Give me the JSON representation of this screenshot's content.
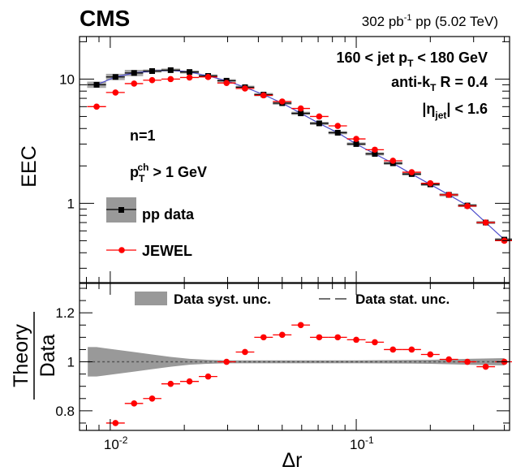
{
  "header": {
    "experiment": "CMS",
    "lumi_value": "302 pb",
    "lumi_exp": "-1",
    "lumi_rest": " pp (5.02 TeV)"
  },
  "labels": {
    "jet_pt": {
      "pre": "160 < jet p",
      "sub": "T",
      "post": " < 180 GeV"
    },
    "algo": {
      "pre": "anti-k",
      "sub": "T",
      "post": " R = 0.4"
    },
    "eta": {
      "pre": "|η",
      "sub": "jet",
      "post": "| < 1.6"
    },
    "n": "n=1",
    "track": {
      "pre": "p",
      "sub": "T",
      "sup": "ch",
      "post": " > 1 GeV"
    }
  },
  "legend_top": [
    "pp data",
    "JEWEL"
  ],
  "legend_bottom": [
    "Data syst. unc.",
    "Data stat. unc."
  ],
  "colors": {
    "data": "#000000",
    "jewel": "#ff0000",
    "band": "#999999",
    "line": "#4d4dcc"
  },
  "chart_data": [
    {
      "type": "scatter",
      "ylabel": "EEC",
      "yscale": "log",
      "ylim": [
        0.23,
        22
      ],
      "xscale": "log",
      "xlim": [
        0.0075,
        0.42
      ],
      "ytick_labels": [
        "1",
        "10"
      ],
      "series": [
        {
          "name": "pp data",
          "x": [
            0.0088,
            0.0105,
            0.0125,
            0.0148,
            0.0176,
            0.021,
            0.025,
            0.0297,
            0.0353,
            0.042,
            0.05,
            0.0595,
            0.0707,
            0.0841,
            0.1,
            0.119,
            0.141,
            0.168,
            0.2,
            0.238,
            0.283,
            0.336,
            0.4
          ],
          "y": [
            9.0,
            10.4,
            11.2,
            11.6,
            11.8,
            11.4,
            10.6,
            9.7,
            8.6,
            7.5,
            6.4,
            5.3,
            4.4,
            3.7,
            3.0,
            2.5,
            2.1,
            1.72,
            1.42,
            1.17,
            0.96,
            0.7,
            0.51
          ]
        },
        {
          "name": "JEWEL",
          "x": [
            0.0088,
            0.0105,
            0.0125,
            0.0148,
            0.0176,
            0.021,
            0.025,
            0.0297,
            0.0353,
            0.042,
            0.05,
            0.0595,
            0.0707,
            0.0841,
            0.1,
            0.119,
            0.141,
            0.168,
            0.2,
            0.238,
            0.283,
            0.336,
            0.4
          ],
          "y": [
            6.0,
            7.8,
            9.2,
            9.8,
            10.0,
            10.3,
            10.4,
            9.3,
            8.4,
            7.4,
            6.6,
            5.8,
            5.0,
            4.2,
            3.3,
            2.7,
            2.2,
            1.78,
            1.45,
            1.17,
            0.95,
            0.7,
            0.5
          ]
        }
      ]
    },
    {
      "type": "scatter",
      "ylabel_top": "Theory",
      "ylabel_bottom": "Data",
      "xlabel": "Δr",
      "ylim": [
        0.72,
        1.32
      ],
      "yticks": [
        0.8,
        1.0,
        1.2
      ],
      "ytick_labels": [
        "0.8",
        "1",
        "1.2"
      ],
      "xtick_labels": [
        {
          "base": "10",
          "exp": "-2"
        },
        {
          "base": "10",
          "exp": "-1"
        }
      ],
      "series": [
        {
          "name": "JEWEL / data",
          "x": [
            0.0105,
            0.0125,
            0.0148,
            0.0176,
            0.021,
            0.025,
            0.0297,
            0.0353,
            0.042,
            0.05,
            0.0595,
            0.0707,
            0.0841,
            0.1,
            0.119,
            0.141,
            0.168,
            0.2,
            0.238,
            0.283,
            0.336,
            0.4
          ],
          "y": [
            0.75,
            0.83,
            0.85,
            0.91,
            0.92,
            0.94,
            1.0,
            1.04,
            1.1,
            1.11,
            1.15,
            1.1,
            1.1,
            1.09,
            1.08,
            1.05,
            1.05,
            1.03,
            1.01,
            1.0,
            0.98,
            1.0
          ]
        }
      ],
      "syst_band_halfwidth": {
        "x": [
          0.0088,
          0.0105,
          0.0125,
          0.0148,
          0.0176,
          0.021,
          0.025,
          0.0297,
          0.0353,
          0.042,
          0.1,
          0.2,
          0.283,
          0.4
        ],
        "dy": [
          0.06,
          0.05,
          0.04,
          0.03,
          0.02,
          0.012,
          0.008,
          0.006,
          0.006,
          0.006,
          0.006,
          0.008,
          0.012,
          0.015
        ]
      }
    }
  ]
}
